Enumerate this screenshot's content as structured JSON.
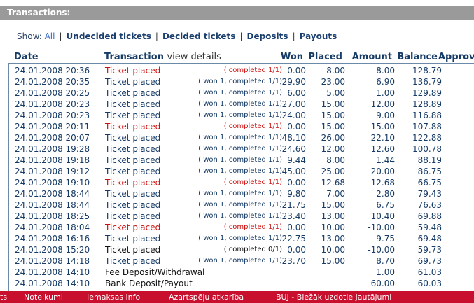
{
  "title": "Transactions:",
  "filters": {
    "label": "Show:",
    "items": [
      "All",
      "Undecided tickets",
      "Decided tickets",
      "Deposits",
      "Payouts"
    ]
  },
  "columns": {
    "date": "Date",
    "transaction": "Transaction",
    "view_details": "view details",
    "won": "Won",
    "placed": "Placed",
    "amount": "Amount",
    "balance": "Balance",
    "approved": "Approv"
  },
  "rows": [
    {
      "date": "24.01.2008 20:36",
      "tx": "Ticket placed",
      "status": "( completed 1/1)",
      "won": "0.00",
      "placed": "8.00",
      "amount": "-8.00",
      "balance": "128.79",
      "tone": "red"
    },
    {
      "date": "24.01.2008 20:35",
      "tx": "Ticket placed",
      "status": "( won 1, completed 1/1)",
      "won": "29.90",
      "placed": "23.00",
      "amount": "6.90",
      "balance": "136.79",
      "tone": "blue"
    },
    {
      "date": "24.01.2008 20:25",
      "tx": "Ticket placed",
      "status": "( won 1, completed 1/1)",
      "won": "6.00",
      "placed": "5.00",
      "amount": "1.00",
      "balance": "129.89",
      "tone": "blue"
    },
    {
      "date": "24.01.2008 20:23",
      "tx": "Ticket placed",
      "status": "( won 1, completed 1/1)",
      "won": "27.00",
      "placed": "15.00",
      "amount": "12.00",
      "balance": "128.89",
      "tone": "blue"
    },
    {
      "date": "24.01.2008 20:23",
      "tx": "Ticket placed",
      "status": "( won 1, completed 1/1)",
      "won": "24.00",
      "placed": "15.00",
      "amount": "9.00",
      "balance": "116.88",
      "tone": "blue"
    },
    {
      "date": "24.01.2008 20:11",
      "tx": "Ticket placed",
      "status": "( completed 1/1)",
      "won": "0.00",
      "placed": "15.00",
      "amount": "-15.00",
      "balance": "107.88",
      "tone": "red"
    },
    {
      "date": "24.01.2008 20:07",
      "tx": "Ticket placed",
      "status": "( won 1, completed 1/1)",
      "won": "48.10",
      "placed": "26.00",
      "amount": "22.10",
      "balance": "122.88",
      "tone": "blue"
    },
    {
      "date": "24.01.2008 19:28",
      "tx": "Ticket placed",
      "status": "( won 1, completed 1/1)",
      "won": "24.60",
      "placed": "12.00",
      "amount": "12.60",
      "balance": "100.78",
      "tone": "blue"
    },
    {
      "date": "24.01.2008 19:18",
      "tx": "Ticket placed",
      "status": "( won 1, completed 1/1)",
      "won": "9.44",
      "placed": "8.00",
      "amount": "1.44",
      "balance": "88.19",
      "tone": "blue"
    },
    {
      "date": "24.01.2008 19:12",
      "tx": "Ticket placed",
      "status": "( won 1, completed 1/1)",
      "won": "45.00",
      "placed": "25.00",
      "amount": "20.00",
      "balance": "86.75",
      "tone": "blue"
    },
    {
      "date": "24.01.2008 19:10",
      "tx": "Ticket placed",
      "status": "( completed 1/1)",
      "won": "0.00",
      "placed": "12.68",
      "amount": "-12.68",
      "balance": "66.75",
      "tone": "red"
    },
    {
      "date": "24.01.2008 18:44",
      "tx": "Ticket placed",
      "status": "( won 1, completed 1/1)",
      "won": "9.80",
      "placed": "7.00",
      "amount": "2.80",
      "balance": "79.43",
      "tone": "blue"
    },
    {
      "date": "24.01.2008 18:44",
      "tx": "Ticket placed",
      "status": "( won 1, completed 1/1)",
      "won": "21.75",
      "placed": "15.00",
      "amount": "6.75",
      "balance": "76.63",
      "tone": "blue"
    },
    {
      "date": "24.01.2008 18:25",
      "tx": "Ticket placed",
      "status": "( won 1, completed 1/1)",
      "won": "23.40",
      "placed": "13.00",
      "amount": "10.40",
      "balance": "69.88",
      "tone": "blue"
    },
    {
      "date": "24.01.2008 18:04",
      "tx": "Ticket placed",
      "status": "( completed 1/1)",
      "won": "0.00",
      "placed": "10.00",
      "amount": "-10.00",
      "balance": "59.48",
      "tone": "red"
    },
    {
      "date": "24.01.2008 16:16",
      "tx": "Ticket placed",
      "status": "( won 1, completed 1/1)",
      "won": "22.75",
      "placed": "13.00",
      "amount": "9.75",
      "balance": "69.48",
      "tone": "blue"
    },
    {
      "date": "24.01.2008 15:20",
      "tx": "Ticket placed",
      "status": "( completed 0/1)",
      "won": "0.00",
      "placed": "10.00",
      "amount": "-10.00",
      "balance": "59.73",
      "tone": "black"
    },
    {
      "date": "24.01.2008 14:18",
      "tx": "Ticket placed",
      "status": "( won 1, completed 1/1)",
      "won": "23.70",
      "placed": "15.00",
      "amount": "8.70",
      "balance": "69.73",
      "tone": "blue"
    },
    {
      "date": "24.01.2008 14:10",
      "tx": "Fee Deposit/Withdrawal",
      "status": "",
      "won": "",
      "placed": "",
      "amount": "1.00",
      "balance": "61.03",
      "tone": "black"
    },
    {
      "date": "24.01.2008 14:10",
      "tx": "Bank Deposit/Payout",
      "status": "",
      "won": "",
      "placed": "",
      "amount": "60.00",
      "balance": "60.03",
      "tone": "black"
    }
  ],
  "footer": {
    "items": [
      "ts",
      "Noteikumi",
      "Iemaksas info",
      "Azartspēļu atkarība",
      "BUJ - Biežāk uzdotie jautājumi"
    ]
  },
  "colors": {
    "red": "#cc1111",
    "blue": "#163b66",
    "footer_bg": "#c8102e",
    "titlebar_bg": "#9a9a9a"
  }
}
